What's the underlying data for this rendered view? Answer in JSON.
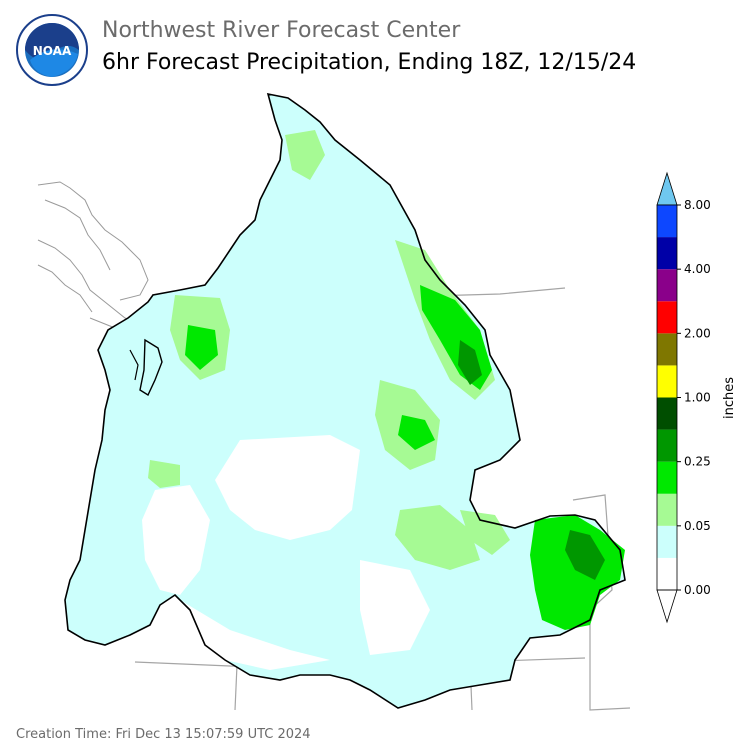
{
  "header": {
    "line1": "Northwest River Forecast Center",
    "line2": "6hr Forecast Precipitation, Ending 18Z, 12/15/24",
    "logo_text": "NOAA",
    "logo_ring_text": "NATIONAL OCEANIC AND ATMOSPHERIC ADMINISTRATION · U.S. DEPARTMENT OF COMMERCE"
  },
  "colorbar": {
    "unit": "inches",
    "ticks": [
      "0.00",
      "0.05",
      "0.25",
      "1.00",
      "2.00",
      "4.00",
      "8.00"
    ],
    "bins": [
      {
        "color": "#ffffff"
      },
      {
        "color": "#ccfffc"
      },
      {
        "color": "#a6fa94"
      },
      {
        "color": "#00e800"
      },
      {
        "color": "#009700"
      },
      {
        "color": "#004e00"
      },
      {
        "color": "#ffff00"
      },
      {
        "color": "#7f7700"
      },
      {
        "color": "#ff0000"
      },
      {
        "color": "#8a008a"
      },
      {
        "color": "#0000a7"
      },
      {
        "color": "#0d47ff"
      }
    ],
    "under_color": "#ffffff",
    "over_color": "#6fc8f0"
  },
  "footer": {
    "creation_time": "Creation Time: Fri Dec 13 15:07:59 UTC 2024"
  }
}
